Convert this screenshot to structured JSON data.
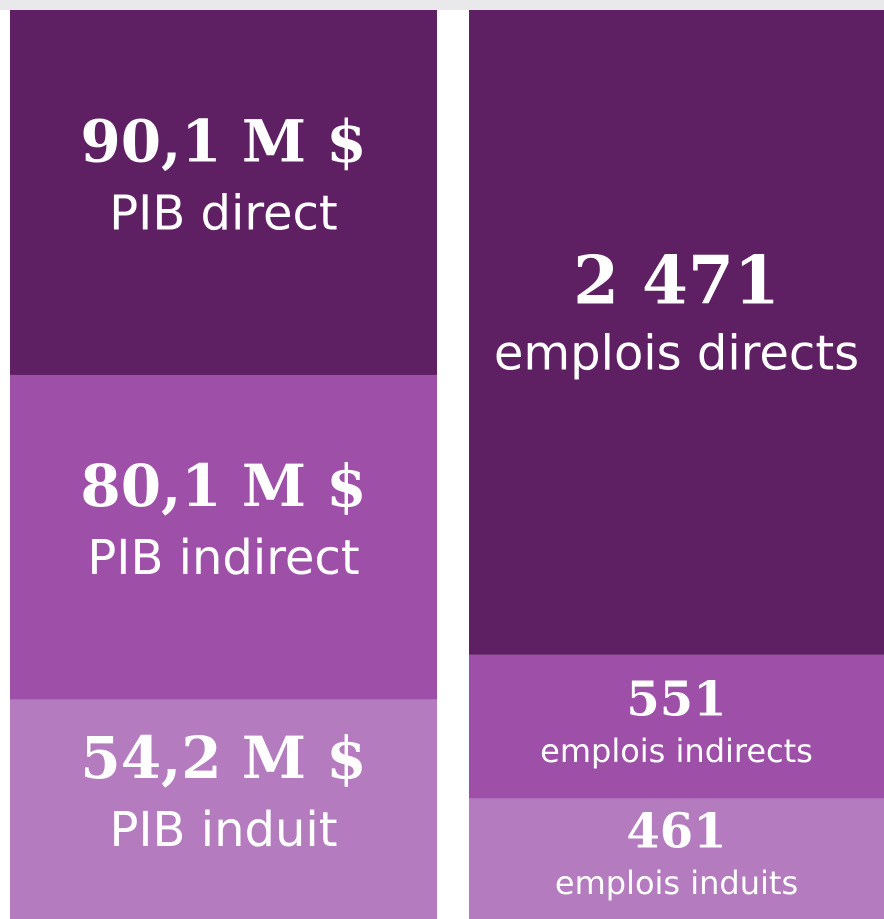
{
  "chart_data": [
    {
      "type": "stacked-column",
      "categories": [
        "PIB direct",
        "PIB indirect",
        "PIB induit"
      ],
      "values": [
        90.1,
        80.1,
        54.2
      ],
      "value_labels": [
        "90,1 M $",
        "80,1 M $",
        "54,2 M $"
      ],
      "colors": [
        "#5e1f63",
        "#9e4fa8",
        "#b57bbf"
      ]
    },
    {
      "type": "stacked-column",
      "categories": [
        "emplois directs",
        "emplois indirects",
        "emplois induits"
      ],
      "values": [
        2471,
        551,
        461
      ],
      "value_labels": [
        "2 471",
        "551",
        "461"
      ],
      "colors": [
        "#5e1f63",
        "#9e4fa8",
        "#b57bbf"
      ]
    }
  ]
}
